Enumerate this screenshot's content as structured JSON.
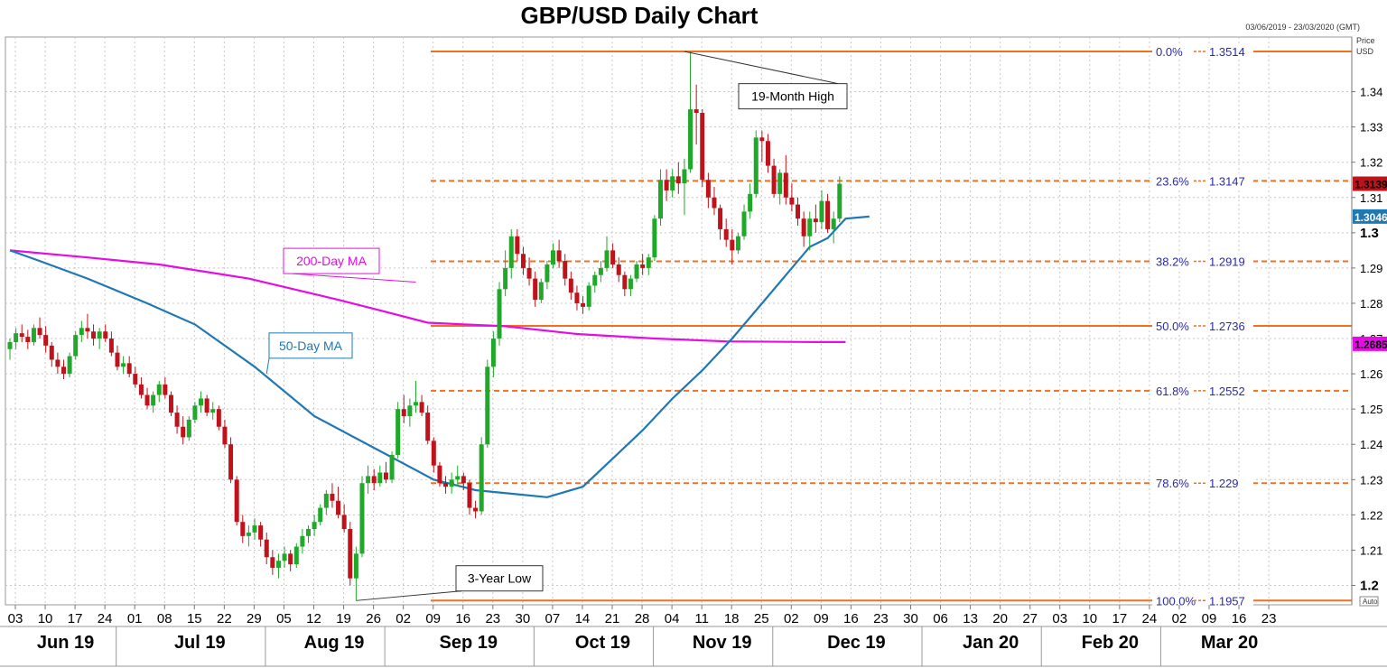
{
  "chart_data": {
    "type": "candlestick",
    "title": "GBP/USD Daily Chart",
    "date_range": "03/06/2019 - 23/03/2020 (GMT)",
    "price_label_line1": "Price",
    "price_label_line2": "USD",
    "auto_label": "Auto",
    "ylim": [
      1.1945,
      1.3555
    ],
    "y_ticks": [
      {
        "value": 1.2,
        "label": "1.2",
        "bold": true
      },
      {
        "value": 1.21,
        "label": "1.21"
      },
      {
        "value": 1.22,
        "label": "1.22"
      },
      {
        "value": 1.23,
        "label": "1.23"
      },
      {
        "value": 1.24,
        "label": "1.24"
      },
      {
        "value": 1.25,
        "label": "1.25"
      },
      {
        "value": 1.26,
        "label": "1.26"
      },
      {
        "value": 1.27,
        "label": "1.27"
      },
      {
        "value": 1.28,
        "label": "1.28"
      },
      {
        "value": 1.29,
        "label": "1.29"
      },
      {
        "value": 1.3,
        "label": "1.3",
        "bold": true
      },
      {
        "value": 1.31,
        "label": "1.31"
      },
      {
        "value": 1.32,
        "label": "1.32"
      },
      {
        "value": 1.33,
        "label": "1.33"
      },
      {
        "value": 1.34,
        "label": "1.34"
      }
    ],
    "x_ticks": [
      "03",
      "10",
      "17",
      "24",
      "01",
      "08",
      "15",
      "22",
      "29",
      "05",
      "12",
      "19",
      "26",
      "02",
      "09",
      "16",
      "23",
      "30",
      "07",
      "14",
      "21",
      "28",
      "04",
      "11",
      "18",
      "25",
      "02",
      "09",
      "16",
      "23",
      "30",
      "06",
      "13",
      "20",
      "27",
      "03",
      "10",
      "17",
      "24",
      "02",
      "09",
      "16",
      "23"
    ],
    "months": [
      {
        "label": "Jun 19",
        "tick_start": 0,
        "tick_end": 3
      },
      {
        "label": "Jul 19",
        "tick_start": 4,
        "tick_end": 8
      },
      {
        "label": "Aug 19",
        "tick_start": 9,
        "tick_end": 12
      },
      {
        "label": "Sep 19",
        "tick_start": 13,
        "tick_end": 17
      },
      {
        "label": "Oct 19",
        "tick_start": 18,
        "tick_end": 21
      },
      {
        "label": "Nov 19",
        "tick_start": 22,
        "tick_end": 25
      },
      {
        "label": "Dec 19",
        "tick_start": 26,
        "tick_end": 30
      },
      {
        "label": "Jan 20",
        "tick_start": 31,
        "tick_end": 34
      },
      {
        "label": "Feb 20",
        "tick_start": 35,
        "tick_end": 38
      },
      {
        "label": "Mar 20",
        "tick_start": 39,
        "tick_end": 42
      }
    ],
    "fib_levels": [
      {
        "pct": "0.0%",
        "value": 1.3514,
        "label": "1.3514",
        "style": "solid"
      },
      {
        "pct": "23.6%",
        "value": 1.3147,
        "label": "1.3147",
        "style": "dashed"
      },
      {
        "pct": "38.2%",
        "value": 1.2919,
        "label": "1.2919",
        "style": "dashed"
      },
      {
        "pct": "50.0%",
        "value": 1.2736,
        "label": "1.2736",
        "style": "solid"
      },
      {
        "pct": "61.8%",
        "value": 1.2552,
        "label": "1.2552",
        "style": "dashed"
      },
      {
        "pct": "78.6%",
        "value": 1.229,
        "label": "1.229",
        "style": "dashed"
      },
      {
        "pct": "100.0%",
        "value": 1.1957,
        "label": "1.1957",
        "style": "solid"
      }
    ],
    "candles": [
      [
        1.267,
        1.27,
        1.264,
        1.269
      ],
      [
        1.269,
        1.273,
        1.267,
        1.2715
      ],
      [
        1.2715,
        1.274,
        1.269,
        1.2705
      ],
      [
        1.2705,
        1.2725,
        1.267,
        1.269
      ],
      [
        1.269,
        1.274,
        1.268,
        1.273
      ],
      [
        1.273,
        1.276,
        1.27,
        1.271
      ],
      [
        1.271,
        1.2735,
        1.266,
        1.268
      ],
      [
        1.268,
        1.269,
        1.262,
        1.264
      ],
      [
        1.264,
        1.266,
        1.26,
        1.262
      ],
      [
        1.262,
        1.264,
        1.2585,
        1.26
      ],
      [
        1.26,
        1.266,
        1.259,
        1.265
      ],
      [
        1.265,
        1.272,
        1.264,
        1.271
      ],
      [
        1.271,
        1.275,
        1.269,
        1.273
      ],
      [
        1.273,
        1.277,
        1.27,
        1.272
      ],
      [
        1.272,
        1.274,
        1.268,
        1.27
      ],
      [
        1.27,
        1.273,
        1.267,
        1.272
      ],
      [
        1.272,
        1.274,
        1.269,
        1.27
      ],
      [
        1.27,
        1.272,
        1.265,
        1.266
      ],
      [
        1.266,
        1.268,
        1.261,
        1.262
      ],
      [
        1.262,
        1.265,
        1.26,
        1.263
      ],
      [
        1.263,
        1.265,
        1.259,
        1.26
      ],
      [
        1.26,
        1.262,
        1.256,
        1.257
      ],
      [
        1.257,
        1.259,
        1.253,
        1.254
      ],
      [
        1.254,
        1.256,
        1.25,
        1.251
      ],
      [
        1.251,
        1.255,
        1.249,
        1.254
      ],
      [
        1.254,
        1.258,
        1.252,
        1.257
      ],
      [
        1.257,
        1.259,
        1.253,
        1.254
      ],
      [
        1.254,
        1.255,
        1.248,
        1.249
      ],
      [
        1.249,
        1.251,
        1.243,
        1.245
      ],
      [
        1.245,
        1.248,
        1.24,
        1.242
      ],
      [
        1.242,
        1.248,
        1.241,
        1.247
      ],
      [
        1.247,
        1.252,
        1.246,
        1.251
      ],
      [
        1.251,
        1.255,
        1.249,
        1.253
      ],
      [
        1.253,
        1.254,
        1.248,
        1.249
      ],
      [
        1.249,
        1.252,
        1.247,
        1.25
      ],
      [
        1.25,
        1.251,
        1.244,
        1.245
      ],
      [
        1.245,
        1.247,
        1.239,
        1.24
      ],
      [
        1.24,
        1.242,
        1.229,
        1.23
      ],
      [
        1.23,
        1.231,
        1.217,
        1.218
      ],
      [
        1.218,
        1.22,
        1.212,
        1.214
      ],
      [
        1.214,
        1.217,
        1.211,
        1.215
      ],
      [
        1.215,
        1.219,
        1.213,
        1.217
      ],
      [
        1.217,
        1.218,
        1.211,
        1.213
      ],
      [
        1.213,
        1.215,
        1.206,
        1.208
      ],
      [
        1.208,
        1.21,
        1.203,
        1.205
      ],
      [
        1.205,
        1.209,
        1.202,
        1.207
      ],
      [
        1.207,
        1.211,
        1.205,
        1.209
      ],
      [
        1.209,
        1.21,
        1.204,
        1.206
      ],
      [
        1.206,
        1.212,
        1.205,
        1.211
      ],
      [
        1.211,
        1.216,
        1.209,
        1.214
      ],
      [
        1.214,
        1.217,
        1.212,
        1.216
      ],
      [
        1.216,
        1.22,
        1.214,
        1.218
      ],
      [
        1.218,
        1.223,
        1.217,
        1.222
      ],
      [
        1.222,
        1.227,
        1.22,
        1.226
      ],
      [
        1.226,
        1.229,
        1.222,
        1.224
      ],
      [
        1.224,
        1.228,
        1.219,
        1.22
      ],
      [
        1.22,
        1.223,
        1.215,
        1.216
      ],
      [
        1.216,
        1.218,
        1.2,
        1.202
      ],
      [
        1.202,
        1.211,
        1.1957,
        1.209
      ],
      [
        1.209,
        1.231,
        1.208,
        1.229
      ],
      [
        1.229,
        1.234,
        1.226,
        1.231
      ],
      [
        1.231,
        1.233,
        1.227,
        1.229
      ],
      [
        1.229,
        1.234,
        1.228,
        1.232
      ],
      [
        1.232,
        1.235,
        1.229,
        1.23
      ],
      [
        1.23,
        1.238,
        1.229,
        1.237
      ],
      [
        1.237,
        1.252,
        1.236,
        1.25
      ],
      [
        1.25,
        1.254,
        1.246,
        1.248
      ],
      [
        1.248,
        1.253,
        1.245,
        1.251
      ],
      [
        1.251,
        1.258,
        1.249,
        1.252
      ],
      [
        1.252,
        1.254,
        1.248,
        1.249
      ],
      [
        1.249,
        1.251,
        1.24,
        1.241
      ],
      [
        1.241,
        1.242,
        1.232,
        1.234
      ],
      [
        1.234,
        1.235,
        1.228,
        1.229
      ],
      [
        1.229,
        1.231,
        1.226,
        1.228
      ],
      [
        1.228,
        1.232,
        1.226,
        1.23
      ],
      [
        1.23,
        1.234,
        1.228,
        1.231
      ],
      [
        1.231,
        1.232,
        1.227,
        1.229
      ],
      [
        1.229,
        1.23,
        1.22,
        1.222
      ],
      [
        1.222,
        1.224,
        1.219,
        1.221
      ],
      [
        1.221,
        1.242,
        1.22,
        1.24
      ],
      [
        1.24,
        1.264,
        1.239,
        1.262
      ],
      [
        1.262,
        1.272,
        1.259,
        1.27
      ],
      [
        1.27,
        1.286,
        1.268,
        1.284
      ],
      [
        1.284,
        1.295,
        1.282,
        1.29
      ],
      [
        1.29,
        1.301,
        1.287,
        1.299
      ],
      [
        1.299,
        1.301,
        1.292,
        1.294
      ],
      [
        1.294,
        1.296,
        1.288,
        1.29
      ],
      [
        1.29,
        1.293,
        1.285,
        1.287
      ],
      [
        1.287,
        1.289,
        1.279,
        1.281
      ],
      [
        1.281,
        1.287,
        1.28,
        1.286
      ],
      [
        1.286,
        1.292,
        1.284,
        1.291
      ],
      [
        1.291,
        1.297,
        1.29,
        1.295
      ],
      [
        1.295,
        1.298,
        1.29,
        1.292
      ],
      [
        1.292,
        1.294,
        1.285,
        1.287
      ],
      [
        1.287,
        1.289,
        1.281,
        1.283
      ],
      [
        1.283,
        1.285,
        1.278,
        1.28
      ],
      [
        1.28,
        1.282,
        1.277,
        1.279
      ],
      [
        1.279,
        1.286,
        1.278,
        1.285
      ],
      [
        1.285,
        1.289,
        1.283,
        1.288
      ],
      [
        1.288,
        1.292,
        1.286,
        1.29
      ],
      [
        1.29,
        1.299,
        1.289,
        1.295
      ],
      [
        1.295,
        1.297,
        1.29,
        1.291
      ],
      [
        1.291,
        1.293,
        1.286,
        1.288
      ],
      [
        1.288,
        1.289,
        1.282,
        1.284
      ],
      [
        1.284,
        1.288,
        1.282,
        1.287
      ],
      [
        1.287,
        1.292,
        1.286,
        1.291
      ],
      [
        1.291,
        1.294,
        1.288,
        1.29
      ],
      [
        1.29,
        1.294,
        1.288,
        1.293
      ],
      [
        1.293,
        1.305,
        1.292,
        1.304
      ],
      [
        1.304,
        1.318,
        1.302,
        1.315
      ],
      [
        1.315,
        1.318,
        1.309,
        1.312
      ],
      [
        1.312,
        1.318,
        1.31,
        1.316
      ],
      [
        1.316,
        1.32,
        1.311,
        1.314
      ],
      [
        1.314,
        1.321,
        1.305,
        1.318
      ],
      [
        1.318,
        1.3514,
        1.317,
        1.335
      ],
      [
        1.335,
        1.342,
        1.325,
        1.334
      ],
      [
        1.334,
        1.335,
        1.313,
        1.315
      ],
      [
        1.315,
        1.317,
        1.307,
        1.31
      ],
      [
        1.31,
        1.313,
        1.305,
        1.307
      ],
      [
        1.307,
        1.308,
        1.298,
        1.301
      ],
      [
        1.301,
        1.304,
        1.296,
        1.298
      ],
      [
        1.298,
        1.301,
        1.291,
        1.295
      ],
      [
        1.295,
        1.3,
        1.294,
        1.299
      ],
      [
        1.299,
        1.308,
        1.298,
        1.306
      ],
      [
        1.306,
        1.314,
        1.304,
        1.311
      ],
      [
        1.311,
        1.329,
        1.31,
        1.327
      ],
      [
        1.327,
        1.329,
        1.32,
        1.326
      ],
      [
        1.326,
        1.328,
        1.317,
        1.319
      ],
      [
        1.319,
        1.321,
        1.31,
        1.311
      ],
      [
        1.311,
        1.318,
        1.308,
        1.317
      ],
      [
        1.317,
        1.322,
        1.308,
        1.31
      ],
      [
        1.31,
        1.314,
        1.306,
        1.308
      ],
      [
        1.308,
        1.31,
        1.302,
        1.304
      ],
      [
        1.304,
        1.306,
        1.296,
        1.299
      ],
      [
        1.299,
        1.306,
        1.295,
        1.304
      ],
      [
        1.304,
        1.308,
        1.3,
        1.303
      ],
      [
        1.303,
        1.312,
        1.301,
        1.309
      ],
      [
        1.309,
        1.311,
        1.3,
        1.301
      ],
      [
        1.301,
        1.306,
        1.297,
        1.304
      ],
      [
        1.304,
        1.316,
        1.303,
        1.3139
      ]
    ],
    "series": [
      {
        "name": "200-Day MA",
        "label": "200-Day MA",
        "color": "#e60ce6",
        "last_value": "1.2685",
        "label_anchor": {
          "x": 68,
          "y": 1.286
        },
        "label_at": 0.27,
        "label_pos": [
          1.292
        ],
        "points": [
          [
            0,
            1.295
          ],
          [
            13,
            1.293
          ],
          [
            25,
            1.291
          ],
          [
            40,
            1.287
          ],
          [
            55,
            1.281
          ],
          [
            62,
            1.278
          ],
          [
            70,
            1.2745
          ],
          [
            83,
            1.2735
          ],
          [
            95,
            1.2713
          ],
          [
            108,
            1.27
          ],
          [
            120,
            1.2692
          ],
          [
            135,
            1.269
          ],
          [
            140,
            1.269
          ]
        ]
      },
      {
        "name": "50-Day MA",
        "label": "50-Day MA",
        "color": "#1f78b4",
        "last_value": "1.3046",
        "label_anchor": {
          "x": 43,
          "y": 1.26
        },
        "label_pos": [
          1.268
        ],
        "points": [
          [
            0,
            1.295
          ],
          [
            5,
            1.292
          ],
          [
            13,
            1.287
          ],
          [
            23,
            1.28
          ],
          [
            31,
            1.274
          ],
          [
            41,
            1.262
          ],
          [
            51,
            1.248
          ],
          [
            61,
            1.239
          ],
          [
            71,
            1.23
          ],
          [
            78,
            1.227
          ],
          [
            84,
            1.226
          ],
          [
            90,
            1.225
          ],
          [
            96,
            1.228
          ],
          [
            101,
            1.236
          ],
          [
            106,
            1.244
          ],
          [
            111,
            1.253
          ],
          [
            116,
            1.261
          ],
          [
            121,
            1.27
          ],
          [
            126,
            1.28
          ],
          [
            131,
            1.29
          ],
          [
            134,
            1.296
          ],
          [
            137,
            1.2985
          ],
          [
            140,
            1.304
          ],
          [
            144,
            1.3046
          ]
        ]
      }
    ],
    "last_price": "1.3139",
    "annotations": [
      {
        "text": "19-Month High",
        "x_index": 113,
        "value": 1.3514,
        "box": [
          1.3404,
          1.337
        ]
      },
      {
        "text": "3-Year Low",
        "x_index": 58,
        "value": 1.1957,
        "box": [
          1.203,
          1.201
        ]
      }
    ]
  }
}
